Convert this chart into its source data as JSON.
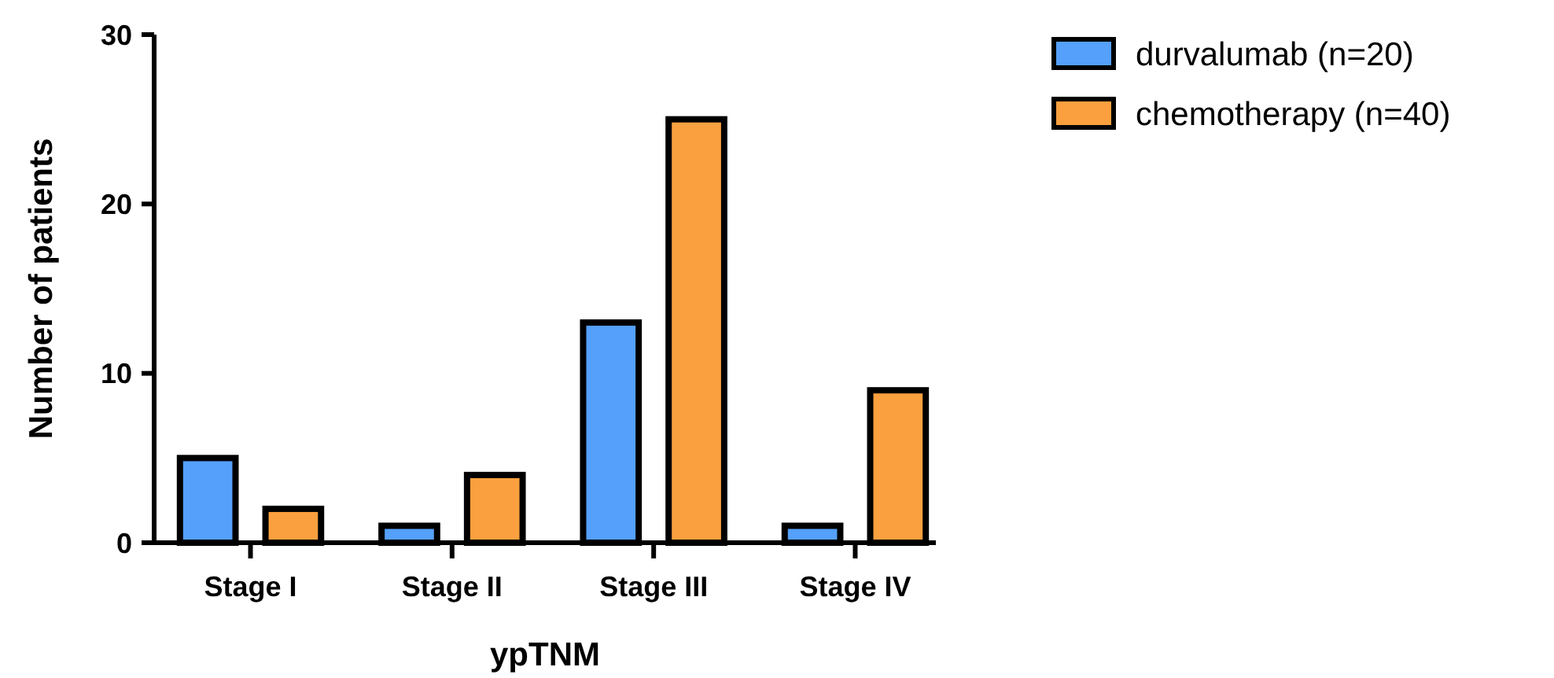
{
  "chart_data": {
    "type": "bar",
    "xlabel": "ypTNM",
    "ylabel": "Number of patients",
    "categories": [
      "Stage I",
      "Stage II",
      "Stage III",
      "Stage IV"
    ],
    "series": [
      {
        "name": "durvalumab (n=20)",
        "color": "#55a0fb",
        "values": [
          5,
          1,
          13,
          1
        ]
      },
      {
        "name": "chemotherapy (n=40)",
        "color": "#fba03f",
        "values": [
          2,
          4,
          25,
          9
        ]
      }
    ],
    "ylim": [
      0,
      30
    ],
    "yticks": [
      0,
      10,
      20,
      30
    ],
    "grid": false,
    "legend": "right"
  }
}
